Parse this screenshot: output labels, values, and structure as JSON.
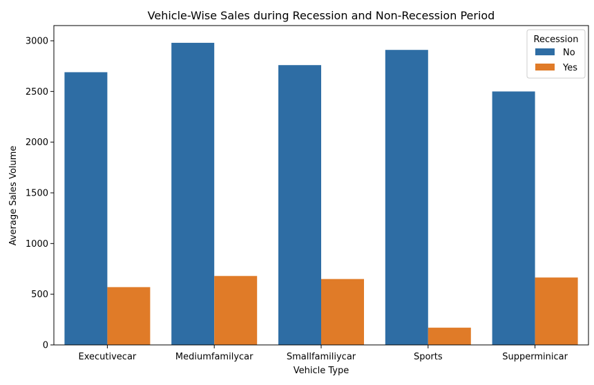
{
  "chart_data": {
    "type": "bar",
    "title": "Vehicle-Wise Sales during Recession and Non-Recession Period",
    "xlabel": "Vehicle Type",
    "ylabel": "Average Sales Volume",
    "categories": [
      "Executivecar",
      "Mediumfamilycar",
      "Smallfamiliycar",
      "Sports",
      "Supperminicar"
    ],
    "series": [
      {
        "name": "No",
        "color": "#2e6da4",
        "values": [
          2690,
          2980,
          2760,
          2910,
          2500
        ]
      },
      {
        "name": "Yes",
        "color": "#e07b28",
        "values": [
          570,
          680,
          650,
          170,
          665
        ]
      }
    ],
    "ylim": [
      0,
      3150
    ],
    "yticks": [
      0,
      500,
      1000,
      1500,
      2000,
      2500,
      3000
    ],
    "legend": {
      "title": "Recession",
      "placement": "top-right"
    },
    "grid": false
  }
}
